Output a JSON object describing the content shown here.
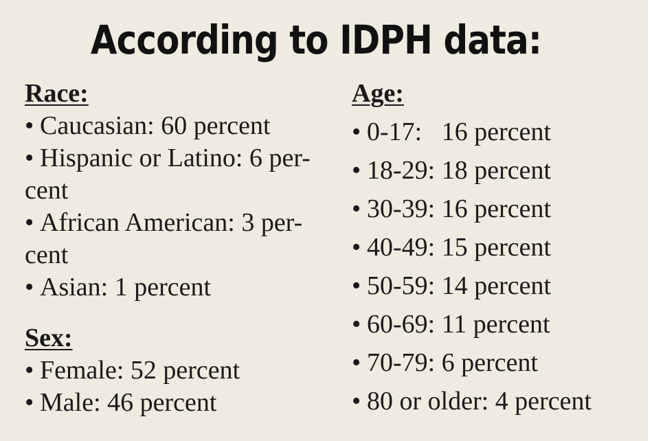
{
  "title": "According to IDPH data:",
  "race": {
    "heading": "Race:",
    "items": [
      {
        "line1": "Caucasian: 60 percent",
        "line2": ""
      },
      {
        "line1": "Hispanic or Latino: 6 per-",
        "line2": "cent"
      },
      {
        "line1": "African American: 3 per-",
        "line2": "cent"
      },
      {
        "line1": "Asian: 1 percent",
        "line2": ""
      }
    ]
  },
  "sex": {
    "heading": "Sex:",
    "items": [
      "Female: 52 percent",
      "Male: 46 percent"
    ]
  },
  "age": {
    "heading": "Age:",
    "items": [
      "0-17:   16 percent",
      "18-29: 18 percent",
      "30-39: 16 percent",
      "40-49: 15 percent",
      "50-59: 14 percent",
      "60-69: 11 percent",
      "70-79: 6 percent",
      "80 or older: 4 percent"
    ]
  },
  "bullet": "•"
}
